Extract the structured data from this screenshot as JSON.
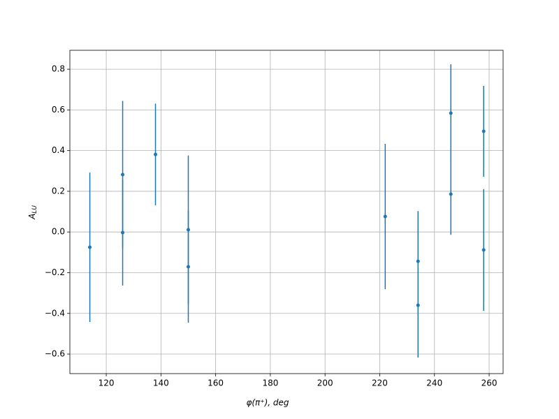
{
  "chart_data": {
    "type": "errorbar",
    "xlabel": "φ(π⁺), deg",
    "ylabel": "A",
    "ylabel_sub": "LU",
    "x": [
      114,
      126,
      126,
      138,
      150,
      150,
      222,
      234,
      234,
      246,
      246,
      258,
      258
    ],
    "series": [
      {
        "color": "#1f77b4",
        "values": [
          -0.075,
          0.282,
          -0.003,
          0.381,
          0.011,
          -0.171,
          0.076,
          -0.144,
          -0.36,
          0.584,
          0.186,
          0.495,
          -0.088
        ],
        "errors": [
          0.367,
          0.362,
          0.26,
          0.25,
          0.365,
          0.275,
          0.357,
          0.247,
          0.257,
          0.24,
          0.2,
          0.223,
          0.299
        ]
      }
    ],
    "xlim": [
      106.7,
      265.1
    ],
    "ylim": [
      -0.696,
      0.893
    ],
    "xticks": [
      120,
      140,
      160,
      180,
      200,
      220,
      240,
      260
    ],
    "yticks": [
      {
        "value": -0.6,
        "label": "−0.6"
      },
      {
        "value": -0.4,
        "label": "−0.4"
      },
      {
        "value": -0.2,
        "label": "−0.2"
      },
      {
        "value": 0,
        "label": "0.0"
      },
      {
        "value": 0.2,
        "label": "0.2"
      },
      {
        "value": 0.4,
        "label": "0.4"
      },
      {
        "value": 0.6,
        "label": "0.6"
      },
      {
        "value": 0.8,
        "label": "0.8"
      }
    ],
    "grid": true
  }
}
